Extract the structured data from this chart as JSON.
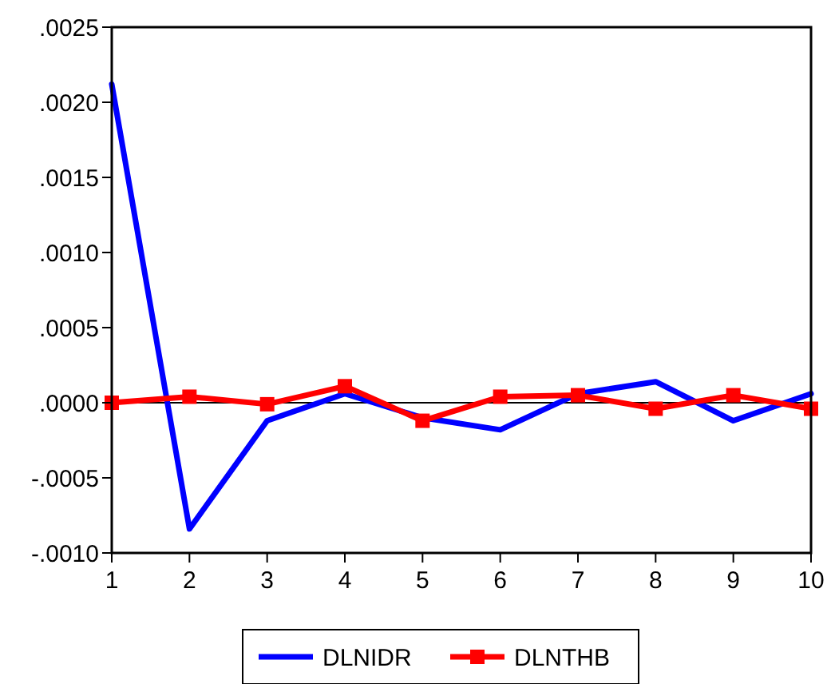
{
  "chart_data": {
    "type": "line",
    "x": [
      1,
      2,
      3,
      4,
      5,
      6,
      7,
      8,
      9,
      10
    ],
    "series": [
      {
        "name": "DLNIDR",
        "color": "#0000ff",
        "marker": "none",
        "values": [
          0.00212,
          -0.00084,
          -0.00012,
          6e-05,
          -0.0001,
          -0.00018,
          6e-05,
          0.00014,
          -0.00012,
          6e-05
        ]
      },
      {
        "name": "DLNTHB",
        "color": "#ff0000",
        "marker": "square",
        "values": [
          0,
          4e-05,
          -1e-05,
          0.00011,
          -0.00012,
          4e-05,
          5e-05,
          -4e-05,
          5e-05,
          -4e-05
        ]
      }
    ],
    "xlim": [
      1,
      10
    ],
    "xticks": [
      1,
      2,
      3,
      4,
      5,
      6,
      7,
      8,
      9,
      10
    ],
    "ylim": [
      -0.001,
      0.0025
    ],
    "yticks": [
      {
        "value": -0.001,
        "label": "-.0010"
      },
      {
        "value": -0.0005,
        "label": "-.0005"
      },
      {
        "value": 0,
        "label": ".0000"
      },
      {
        "value": 0.0005,
        "label": ".0005"
      },
      {
        "value": 0.001,
        "label": ".0010"
      },
      {
        "value": 0.0015,
        "label": ".0015"
      },
      {
        "value": 0.002,
        "label": ".0020"
      },
      {
        "value": 0.0025,
        "label": ".0025"
      }
    ],
    "ref_lines": [
      {
        "axis": "y",
        "value": 0,
        "color": "#000000"
      }
    ],
    "grid": false,
    "legend": "bottom",
    "line_style": "solid"
  }
}
